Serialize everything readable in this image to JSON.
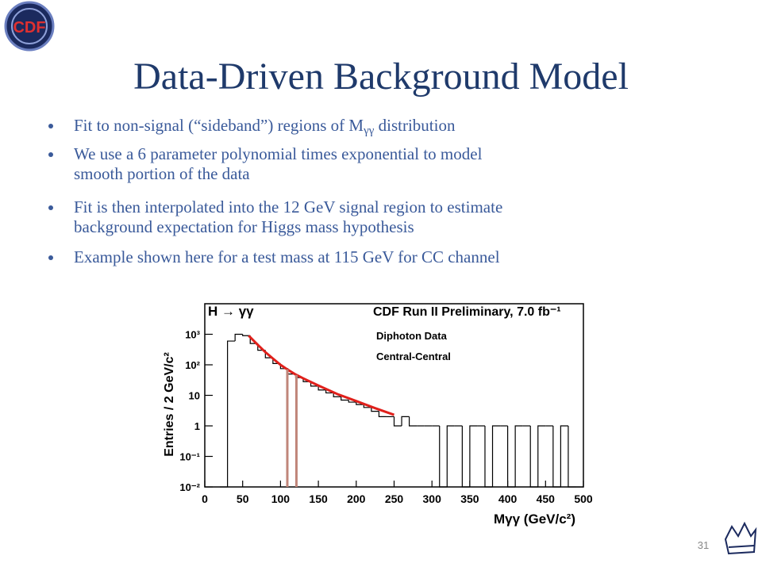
{
  "slide": {
    "title": "Data-Driven Background Model",
    "logo": "CDF",
    "page_number": "31",
    "bullets": [
      {
        "lines": [
          [
            "Fit to non-signal (“sideband”) regions of M",
            "γγ",
            " distribution"
          ]
        ]
      },
      {
        "lines": [
          [
            "We use a 6 parameter polynomial times exponential to model"
          ],
          [
            "smooth portion of the data"
          ]
        ]
      },
      {
        "lines": [
          [
            "Fit is then interpolated into the 12 GeV signal region to estimate"
          ],
          [
            "background expectation for Higgs mass hypothesis"
          ]
        ]
      },
      {
        "lines": [
          [
            "Example shown here for a test mass at 115 GeV for CC channel"
          ]
        ]
      }
    ]
  },
  "chart_data": {
    "type": "histogram",
    "title": "CDF Run II Preliminary, 7.0 fb⁻¹",
    "process": "H → γγ",
    "legend": [
      "Diphoton Data",
      "Central-Central"
    ],
    "x_label": "Mγγ (GeV/c²)",
    "y_label": "Entries / 2 GeV/c²",
    "log_y": true,
    "color": "#000000",
    "bins": [
      20,
      30,
      40,
      50,
      60,
      70,
      80,
      90,
      100,
      110,
      120,
      130,
      140,
      150,
      160,
      170,
      180,
      190,
      200,
      210,
      220,
      230,
      240,
      250,
      260,
      270,
      280,
      290,
      300,
      310,
      320,
      330,
      340,
      350,
      360,
      370,
      380,
      390,
      400,
      410,
      420,
      430,
      440,
      450,
      460,
      470,
      480,
      490,
      500
    ],
    "values": [
      0,
      600,
      1000,
      900,
      500,
      300,
      170,
      110,
      75,
      50,
      38,
      28,
      20,
      15,
      12,
      9,
      7,
      6,
      5,
      4,
      3,
      2,
      2,
      1,
      2,
      1,
      1,
      1,
      1,
      0,
      1,
      1,
      0,
      1,
      1,
      0,
      1,
      1,
      0,
      1,
      1,
      0,
      1,
      1,
      0,
      1,
      0,
      0
    ],
    "fit": {
      "color": "#e0201b",
      "x": [
        58,
        70,
        80,
        90,
        100,
        110,
        120,
        130,
        150,
        175,
        200,
        225,
        250
      ],
      "values": [
        900,
        450,
        260,
        160,
        100,
        68,
        48,
        36,
        21,
        11,
        6.5,
        3.8,
        2.3
      ]
    },
    "signal_window": {
      "color": "#c0857a",
      "x": [
        109,
        121
      ]
    },
    "xlim": [
      0,
      500
    ],
    "xticks": [
      0,
      50,
      100,
      150,
      200,
      250,
      300,
      350,
      400,
      450,
      500
    ],
    "ylim": [
      0.01,
      10000
    ],
    "yticks": [
      {
        "value": 0.01,
        "label": "10⁻²"
      },
      {
        "value": 0.1,
        "label": "10⁻¹"
      },
      1,
      10,
      {
        "value": 100,
        "label": "10²"
      },
      {
        "value": 1000,
        "label": "10³"
      }
    ]
  }
}
